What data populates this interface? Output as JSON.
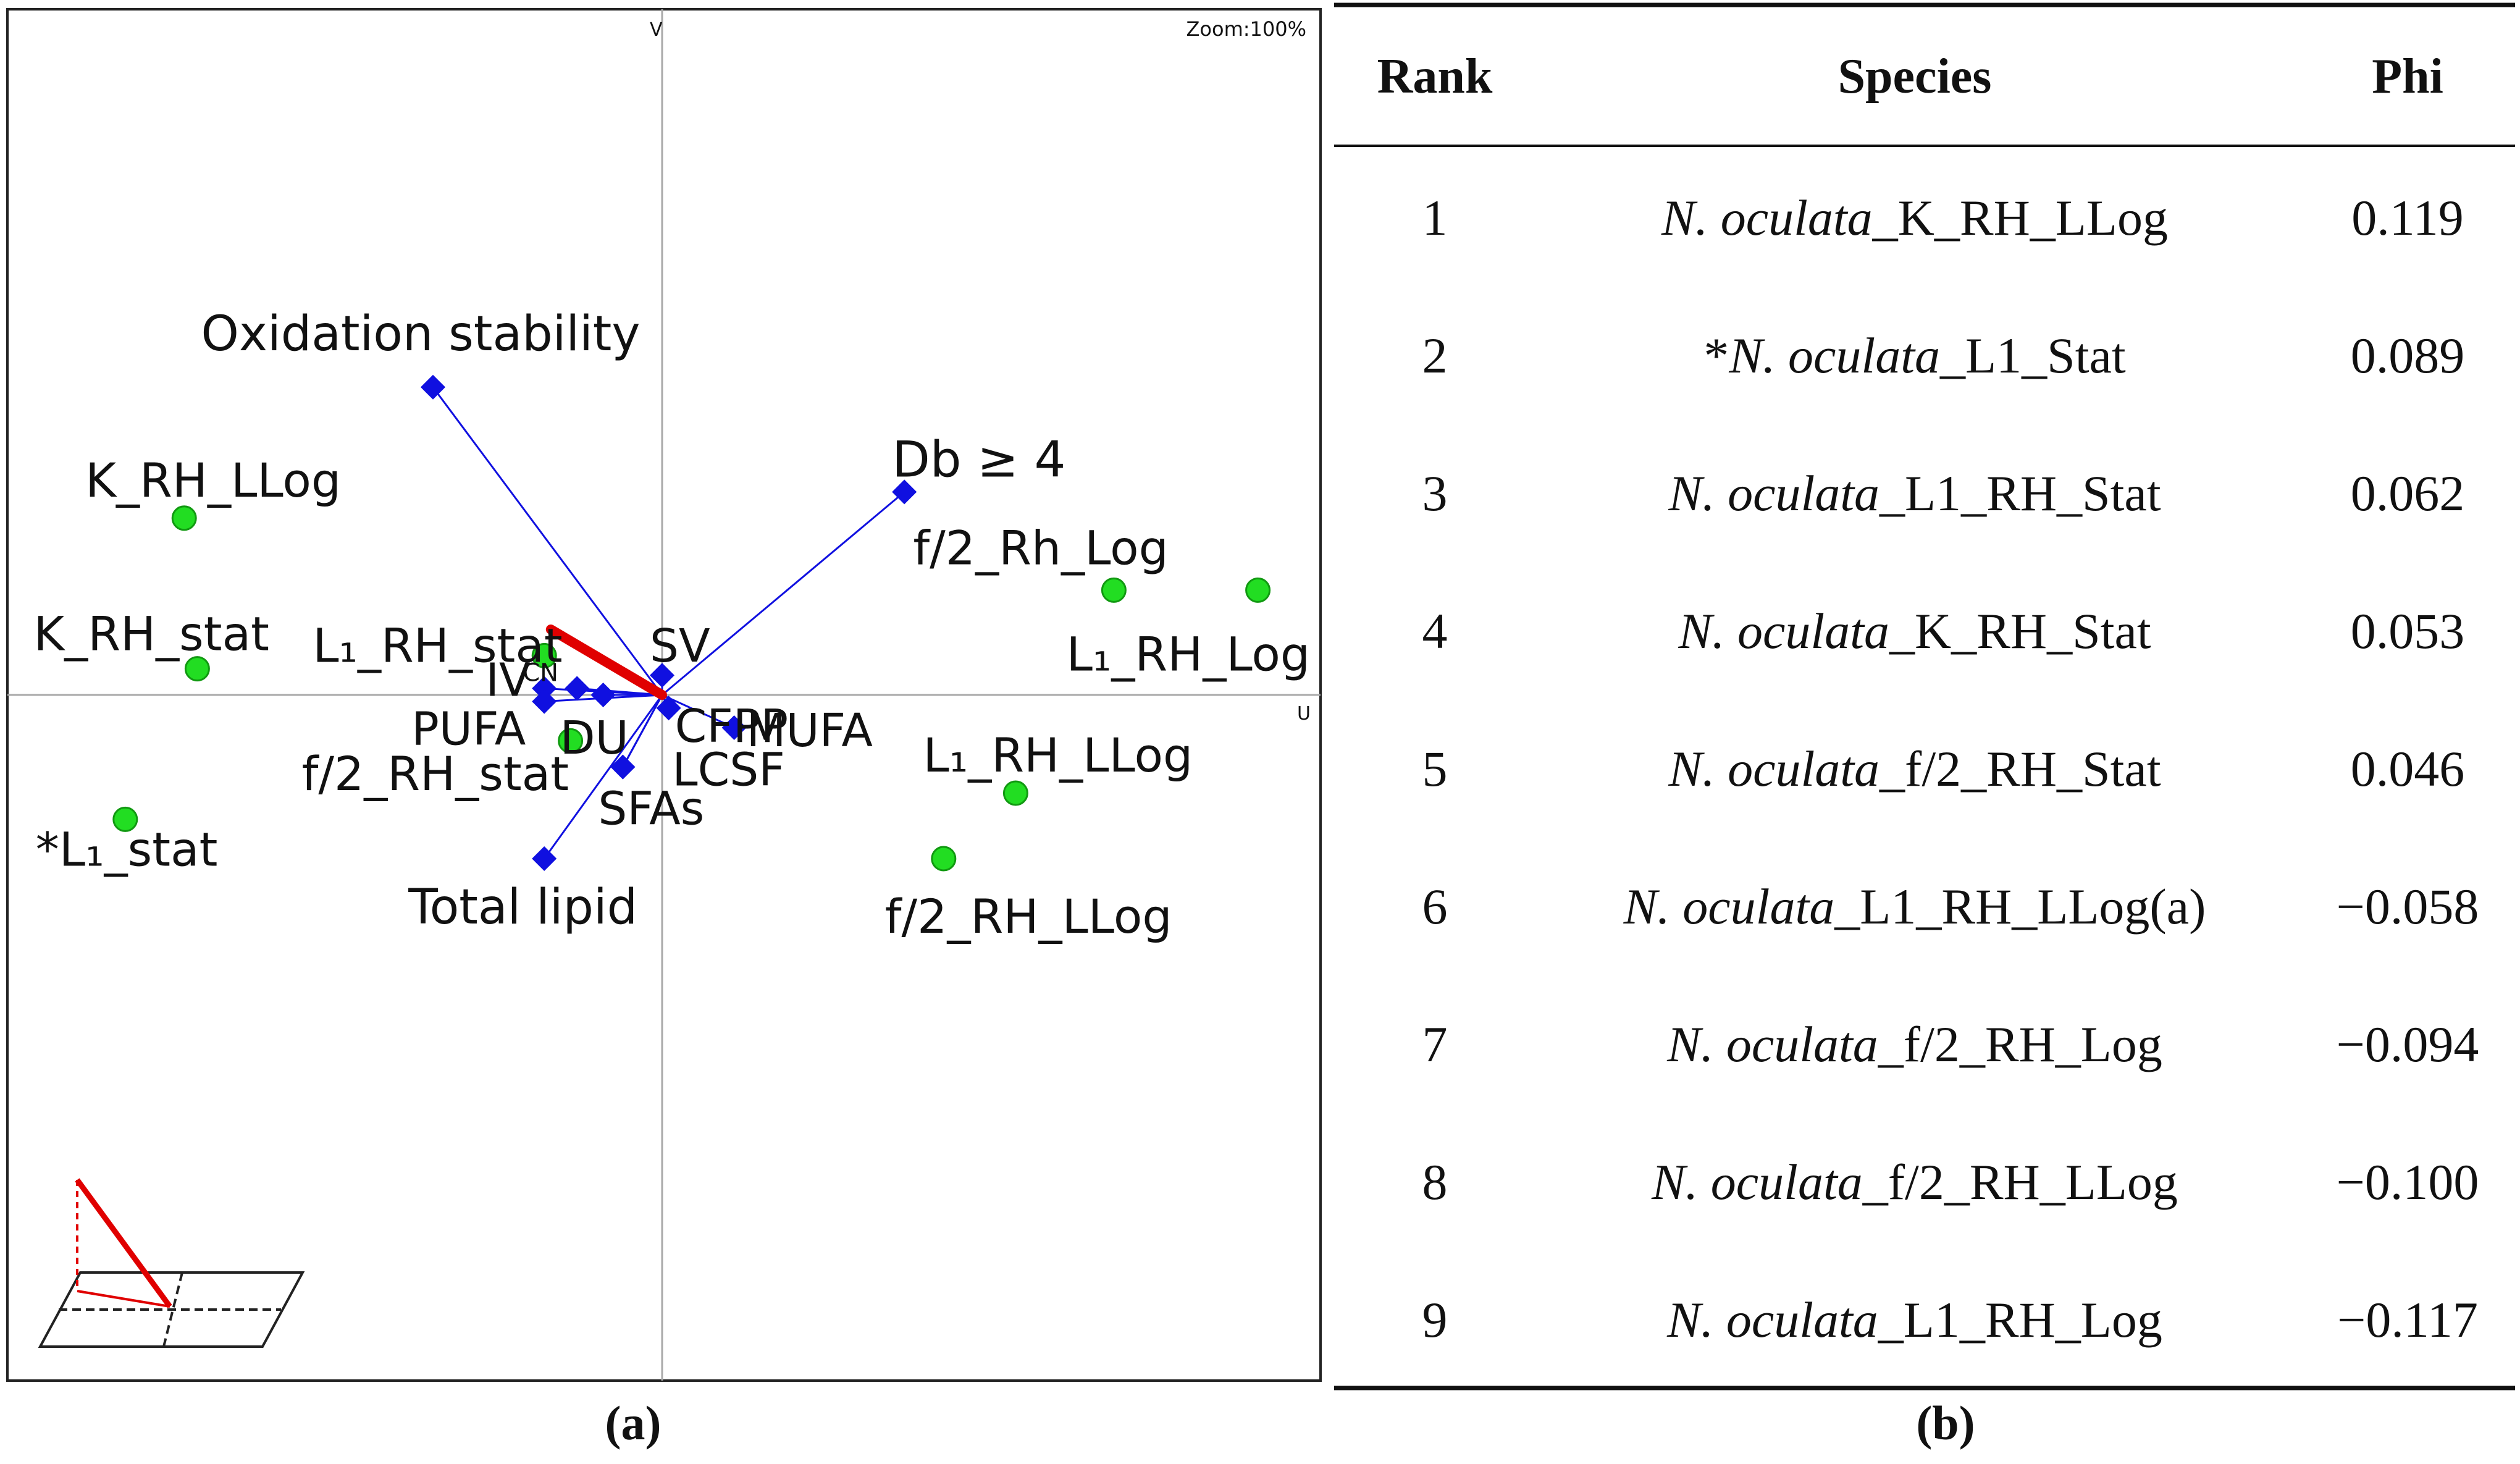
{
  "chart_data": [
    {
      "type": "scatter",
      "title": "",
      "xlabel": "U",
      "ylabel": "V",
      "zoom_label": "Zoom:100%",
      "caption": "(a)",
      "axis_labels": {
        "u": "U",
        "v": "V"
      },
      "criteria_label": "CNA",
      "criteria": [
        {
          "name": "Oxidation stability",
          "x": -0.35,
          "y": 0.47
        },
        {
          "name": "Db ≥ 4",
          "x": 0.37,
          "y": 0.31
        },
        {
          "name": "SV",
          "x": 0.0,
          "y": 0.03
        },
        {
          "name": "IV",
          "x": -0.18,
          "y": 0.01
        },
        {
          "name": "PUFA",
          "x": -0.18,
          "y": -0.01
        },
        {
          "name": "DU",
          "x": -0.09,
          "y": 0.0
        },
        {
          "name": "CFPP",
          "x": 0.01,
          "y": -0.02
        },
        {
          "name": "MUFA",
          "x": 0.11,
          "y": -0.05
        },
        {
          "name": "LCSF",
          "x": -0.06,
          "y": -0.11
        },
        {
          "name": "SFAs",
          "x": -0.06,
          "y": -0.11
        },
        {
          "name": "Total lipid",
          "x": -0.18,
          "y": -0.25
        },
        {
          "name": "CN",
          "x": -0.13,
          "y": 0.01
        }
      ],
      "alternatives": [
        {
          "name": "K_RH_LLog",
          "x": -0.73,
          "y": 0.27
        },
        {
          "name": "K_RH_stat",
          "x": -0.71,
          "y": 0.04
        },
        {
          "name": "L₁_RH_stat",
          "x": -0.18,
          "y": 0.06
        },
        {
          "name": "f/2_Rh_Log",
          "x": 0.69,
          "y": 0.16
        },
        {
          "name": "L₁_RH_Log",
          "x": 0.91,
          "y": 0.16
        },
        {
          "name": "f/2_RH_stat",
          "x": -0.14,
          "y": -0.07
        },
        {
          "name": "*L₁_stat",
          "x": -0.82,
          "y": -0.19
        },
        {
          "name": "L₁_RH_LLog",
          "x": 0.54,
          "y": -0.15
        },
        {
          "name": "f/2_RH_LLog",
          "x": 0.43,
          "y": -0.25
        }
      ],
      "decision_axis": {
        "x": -0.17,
        "y": 0.1,
        "color": "#e00000"
      },
      "colors": {
        "criteria": "#1010e0",
        "alternatives": "#22dd22",
        "decision_axis": "#e00000",
        "axes": "#a9a9a9"
      },
      "xlim": [
        -1.0,
        1.0
      ],
      "ylim": [
        -1.05,
        1.05
      ],
      "grid": false
    },
    {
      "type": "table",
      "caption": "(b)",
      "columns": [
        "Rank",
        "Species",
        "Phi"
      ],
      "rows": [
        {
          "rank": "1",
          "prefix": "",
          "genus": "N. oculata",
          "suffix": "_K_RH_LLog",
          "phi": "0.119"
        },
        {
          "rank": "2",
          "prefix": "*",
          "genus": "N. oculata",
          "suffix": "_L1_Stat",
          "phi": "0.089"
        },
        {
          "rank": "3",
          "prefix": "",
          "genus": "N. oculata",
          "suffix": "_L1_RH_Stat",
          "phi": "0.062"
        },
        {
          "rank": "4",
          "prefix": "",
          "genus": "N. oculata",
          "suffix": "_K_RH_Stat",
          "phi": "0.053"
        },
        {
          "rank": "5",
          "prefix": "",
          "genus": "N. oculata",
          "suffix": "_f/2_RH_Stat",
          "phi": "0.046"
        },
        {
          "rank": "6",
          "prefix": "",
          "genus": "N. oculata",
          "suffix": "_L1_RH_LLog(a)",
          "phi": "−0.058"
        },
        {
          "rank": "7",
          "prefix": "",
          "genus": "N. oculata",
          "suffix": "_f/2_RH_Log",
          "phi": "−0.094"
        },
        {
          "rank": "8",
          "prefix": "",
          "genus": "N. oculata",
          "suffix": "_f/2_RH_LLog",
          "phi": "−0.100"
        },
        {
          "rank": "9",
          "prefix": "",
          "genus": "N. oculata",
          "suffix": "_L1_RH_Log",
          "phi": "−0.117"
        }
      ]
    }
  ]
}
